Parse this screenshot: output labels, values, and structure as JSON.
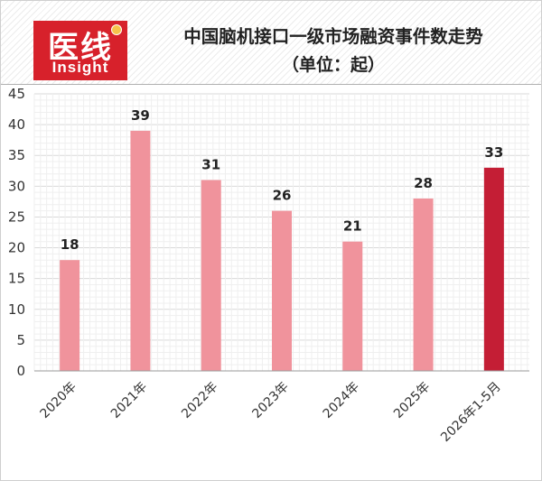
{
  "header": {
    "logo_cn": "医线",
    "logo_en": "Insight",
    "title": "中国脑机接口一级市场融资事件数走势",
    "subtitle": "（单位：起）"
  },
  "colors": {
    "bar": "#f0939c",
    "highlight": "#c41e35",
    "logo": "#d7212b",
    "grid": "#e4e4e4"
  },
  "chart_data": {
    "type": "bar",
    "categories": [
      "2020年",
      "2021年",
      "2022年",
      "2023年",
      "2024年",
      "2025年",
      "2026年1-5月"
    ],
    "values": [
      18,
      39,
      31,
      26,
      21,
      28,
      33
    ],
    "highlight_index": 6,
    "title": "中国脑机接口一级市场融资事件数走势",
    "subtitle": "（单位：起）",
    "xlabel": "",
    "ylabel": "",
    "ylim": [
      0,
      45
    ],
    "yticks": [
      0,
      5,
      10,
      15,
      20,
      25,
      30,
      35,
      40,
      45
    ],
    "grid": true,
    "legend": "none"
  }
}
